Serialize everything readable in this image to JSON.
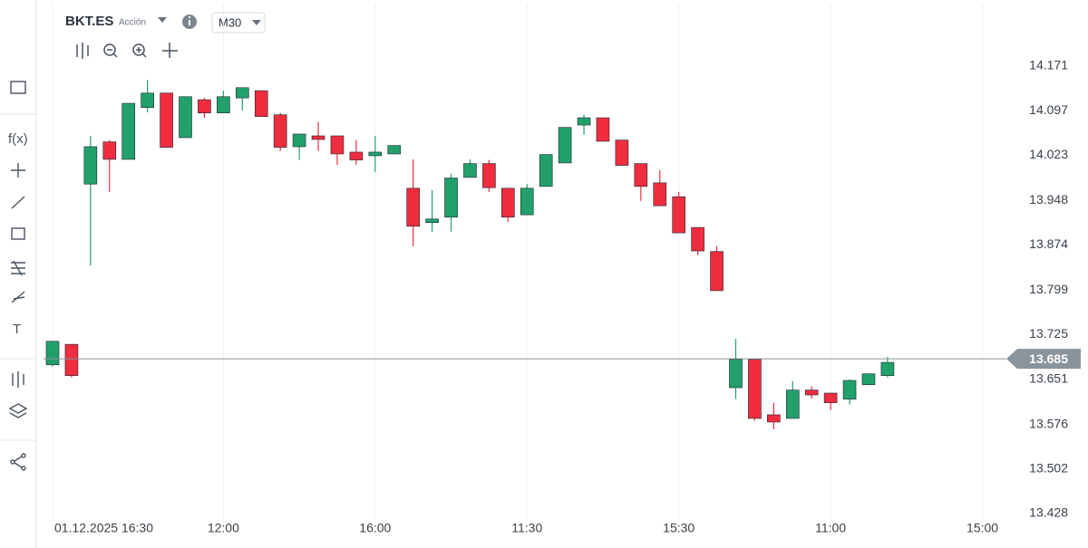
{
  "toolbar": {
    "symbol": "BKT.ES",
    "asset_type": "Acción",
    "timeframe": "M30"
  },
  "sidebar": {
    "function_tool": "f(x)",
    "text_tool": "T"
  },
  "chart_data": {
    "type": "candlestick",
    "categories": [
      "01.12.2025 16:30",
      null,
      null,
      null,
      null,
      null,
      null,
      null,
      null,
      "12:00",
      null,
      null,
      null,
      null,
      null,
      null,
      null,
      "16:00",
      null,
      null,
      null,
      null,
      null,
      null,
      null,
      "11:30",
      null,
      null,
      null,
      null,
      null,
      null,
      null,
      "15:30",
      null,
      null,
      null,
      null,
      null,
      null,
      null,
      "11:00",
      null,
      null,
      null,
      null,
      null,
      null,
      null,
      "15:00"
    ],
    "open": [
      13.675,
      13.709,
      13.975,
      14.045,
      14.016,
      14.102,
      14.126,
      14.052,
      14.115,
      14.093,
      14.118,
      14.13,
      14.09,
      14.037,
      14.055,
      14.055,
      14.028,
      14.022,
      14.025,
      13.968,
      13.911,
      13.92,
      13.986,
      14.009,
      13.968,
      13.924,
      13.971,
      14.01,
      14.073,
      14.085,
      14.048,
      14.009,
      13.977,
      13.954,
      13.903,
      13.863,
      13.637,
      13.684,
      13.592,
      13.586,
      13.633,
      13.628,
      13.618,
      13.642,
      13.657,
      null,
      null,
      null,
      null,
      null
    ],
    "high": [
      13.714,
      13.709,
      14.055,
      14.048,
      14.109,
      14.148,
      14.126,
      14.12,
      14.118,
      14.13,
      14.135,
      14.13,
      14.093,
      14.058,
      14.078,
      14.055,
      14.048,
      14.055,
      14.039,
      14.016,
      13.965,
      13.992,
      14.016,
      14.015,
      13.968,
      13.975,
      14.024,
      14.069,
      14.09,
      14.085,
      14.048,
      14.009,
      13.998,
      13.962,
      13.903,
      13.872,
      13.718,
      13.684,
      13.612,
      13.648,
      13.639,
      13.628,
      13.651,
      13.66,
      13.688,
      null,
      null,
      null,
      null,
      null
    ],
    "low": [
      13.672,
      13.654,
      13.84,
      13.962,
      14.016,
      14.094,
      14.036,
      14.052,
      14.085,
      14.093,
      14.097,
      14.087,
      14.03,
      14.015,
      14.03,
      14.007,
      14.007,
      13.995,
      14.025,
      13.872,
      13.896,
      13.896,
      13.986,
      13.962,
      13.912,
      13.924,
      13.971,
      14.01,
      14.057,
      14.046,
      14.006,
      13.947,
      13.939,
      13.894,
      13.857,
      13.798,
      13.618,
      13.582,
      13.568,
      13.586,
      13.619,
      13.6,
      13.609,
      13.642,
      13.654,
      null,
      null,
      null,
      null,
      null
    ],
    "close": [
      13.714,
      13.657,
      14.037,
      14.016,
      14.109,
      14.126,
      14.036,
      14.12,
      14.093,
      14.12,
      14.135,
      14.087,
      14.036,
      14.058,
      14.049,
      14.025,
      14.015,
      14.028,
      14.039,
      13.905,
      13.917,
      13.985,
      14.009,
      13.969,
      13.92,
      13.968,
      14.024,
      14.069,
      14.085,
      14.046,
      14.006,
      13.971,
      13.939,
      13.894,
      13.864,
      13.798,
      13.684,
      13.586,
      13.58,
      13.633,
      13.625,
      13.612,
      13.649,
      13.66,
      13.679,
      null,
      null,
      null,
      null,
      null
    ],
    "up_color": "#22a06b",
    "down_color": "#ef2d3f",
    "ylim": [
      13.416,
      14.273
    ],
    "yticks": [
      13.428,
      13.502,
      13.576,
      13.651,
      13.725,
      13.799,
      13.874,
      13.948,
      14.023,
      14.097,
      14.171
    ],
    "grid": "x",
    "current_price": 13.685,
    "current_price_color": "#8a949c"
  }
}
